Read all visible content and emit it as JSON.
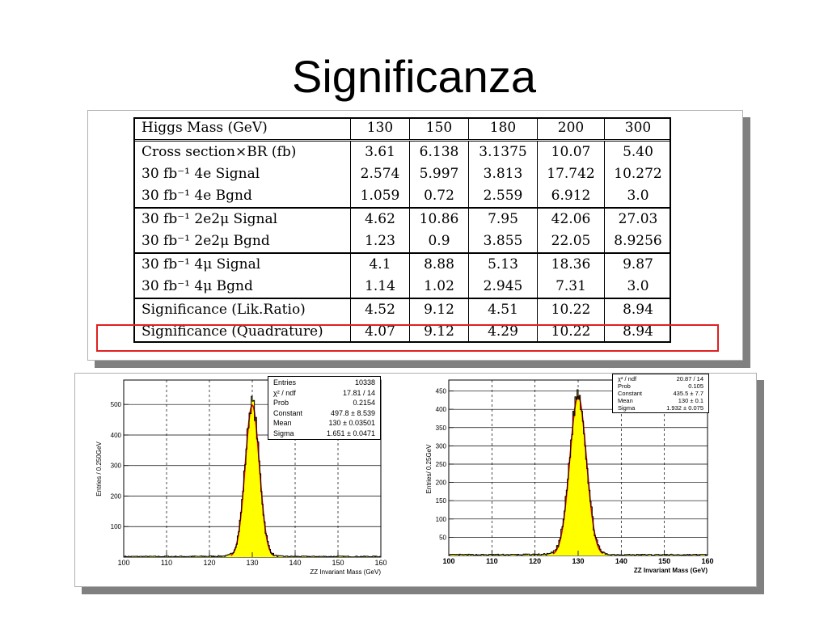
{
  "slide": {
    "title": "Significanza"
  },
  "table": {
    "header": [
      "Higgs Mass (GeV)",
      "130",
      "150",
      "180",
      "200",
      "300"
    ],
    "groups": [
      [
        [
          "Cross section×BR (fb)",
          "3.61",
          "6.138",
          "3.1375",
          "10.07",
          "5.40"
        ],
        [
          "30 fb⁻¹ 4e Signal",
          "2.574",
          "5.997",
          "3.813",
          "17.742",
          "10.272"
        ],
        [
          "30 fb⁻¹ 4e Bgnd",
          "1.059",
          "0.72",
          "2.559",
          "6.912",
          "3.0"
        ]
      ],
      [
        [
          "30 fb⁻¹ 2e2μ Signal",
          "4.62",
          "10.86",
          "7.95",
          "42.06",
          "27.03"
        ],
        [
          "30 fb⁻¹ 2e2μ Bgnd",
          "1.23",
          "0.9",
          "3.855",
          "22.05",
          "8.9256"
        ]
      ],
      [
        [
          "30 fb⁻¹ 4μ Signal",
          "4.1",
          "8.88",
          "5.13",
          "18.36",
          "9.87"
        ],
        [
          "30 fb⁻¹ 4μ Bgnd",
          "1.14",
          "1.02",
          "2.945",
          "7.31",
          "3.0"
        ]
      ],
      [
        [
          "Significance (Lik.Ratio)",
          "4.52",
          "9.12",
          "4.51",
          "10.22",
          "8.94"
        ],
        [
          "Significance (Quadrature)",
          "4.07",
          "9.12",
          "4.29",
          "10.22",
          "8.94"
        ]
      ]
    ]
  },
  "chart_data": [
    {
      "type": "area",
      "xlabel": "ZZ Invariant Mass (GeV)",
      "ylabel": "Entries / 0.250GeV",
      "xlim": [
        100,
        160
      ],
      "ylim": [
        0,
        580
      ],
      "xticks": [
        "100",
        "110",
        "120",
        "130",
        "140",
        "150",
        "160"
      ],
      "yticks": [
        100,
        200,
        300,
        400,
        500
      ],
      "peak": {
        "mean": 130,
        "sigma": 1.651,
        "constant": 497.8
      },
      "stats": [
        [
          "Entries",
          "10338"
        ],
        [
          "χ² / ndf",
          "17.81 / 14"
        ],
        [
          "Prob",
          "0.2154"
        ],
        [
          "Constant",
          "497.8 ± 8.539"
        ],
        [
          "Mean",
          "130 ± 0.03501"
        ],
        [
          "Sigma",
          "1.651 ± 0.0471"
        ]
      ],
      "colors": {
        "fill": "#ffff00",
        "fit": "#e00000",
        "hist": "#000000"
      }
    },
    {
      "type": "area",
      "xlabel": "ZZ Invariant Mass (GeV)",
      "ylabel": "Entries/ 0.25GeV",
      "xlim": [
        100,
        160
      ],
      "ylim": [
        0,
        480
      ],
      "xticks": [
        "100",
        "110",
        "120",
        "130",
        "140",
        "150",
        "160"
      ],
      "yticks": [
        50,
        100,
        150,
        200,
        250,
        300,
        350,
        400,
        450
      ],
      "peak": {
        "mean": 130,
        "sigma": 1.932,
        "constant": 435.5
      },
      "stats": [
        [
          "χ² / ndf",
          "20.87 / 14"
        ],
        [
          "Prob",
          "0.105"
        ],
        [
          "Constant",
          "435.5 ± 7.7"
        ],
        [
          "Mean",
          "130 ± 0.1"
        ],
        [
          "Sigma",
          "1.932 ± 0.075"
        ]
      ],
      "colors": {
        "fill": "#ffff00",
        "fit": "#e00000",
        "hist": "#000000"
      }
    }
  ]
}
